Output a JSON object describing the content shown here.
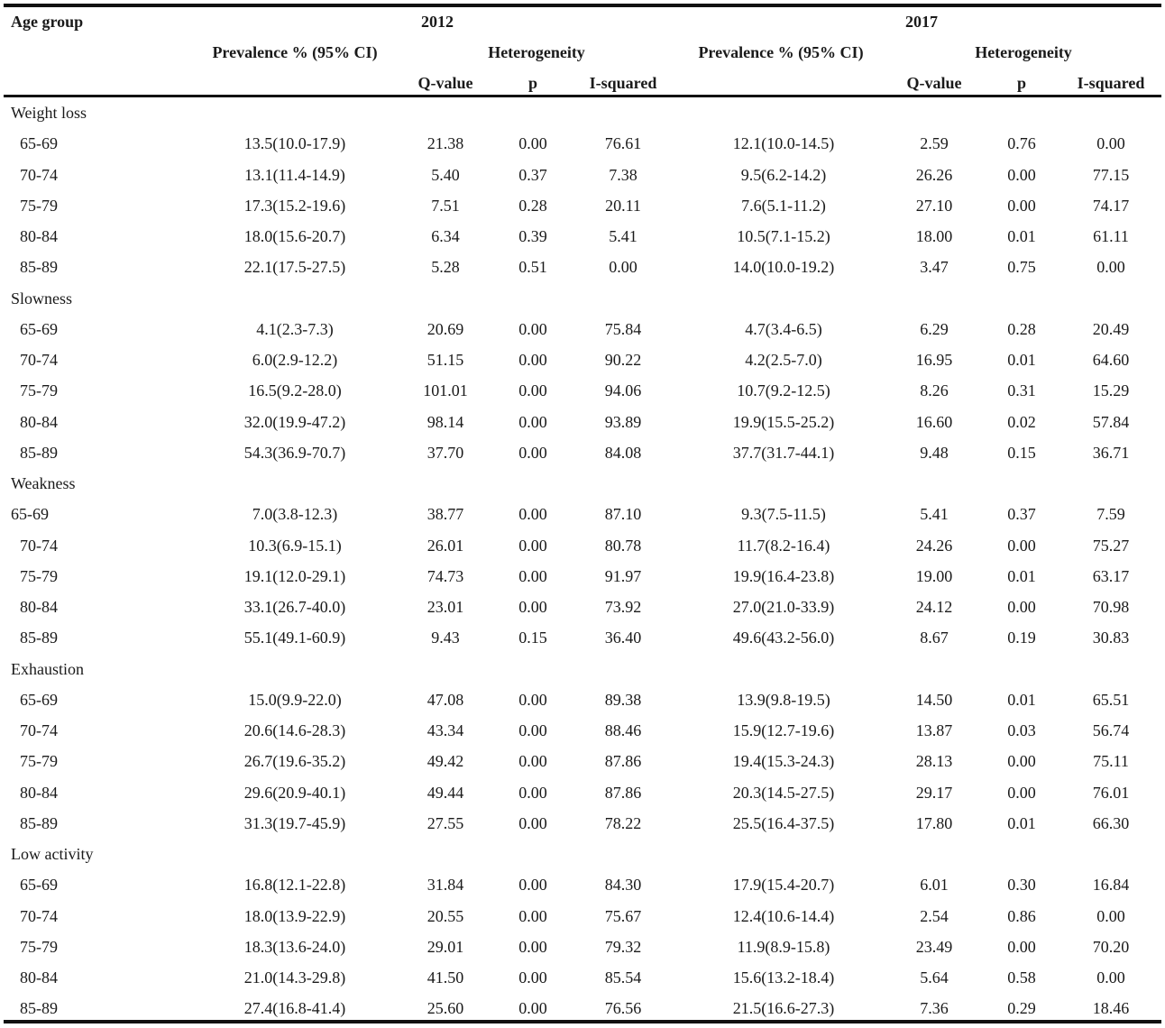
{
  "header": {
    "age_group": "Age group",
    "year_a": "2012",
    "year_b": "2017",
    "prevalence": "Prevalence % (95% CI)",
    "heterogeneity": "Heterogeneity",
    "q_value": "Q-value",
    "p": "p",
    "i_squared": "I-squared"
  },
  "sections": [
    {
      "label": "Weight loss",
      "rows": [
        {
          "age": "65-69",
          "prev2012": "13.5(10.0-17.9)",
          "q2012": "21.38",
          "p2012": "0.00",
          "i2012": "76.61",
          "prev2017": "12.1(10.0-14.5)",
          "q2017": "2.59",
          "p2017": "0.76",
          "i2017": "0.00"
        },
        {
          "age": "70-74",
          "prev2012": "13.1(11.4-14.9)",
          "q2012": "5.40",
          "p2012": "0.37",
          "i2012": "7.38",
          "prev2017": "9.5(6.2-14.2)",
          "q2017": "26.26",
          "p2017": "0.00",
          "i2017": "77.15"
        },
        {
          "age": "75-79",
          "prev2012": "17.3(15.2-19.6)",
          "q2012": "7.51",
          "p2012": "0.28",
          "i2012": "20.11",
          "prev2017": "7.6(5.1-11.2)",
          "q2017": "27.10",
          "p2017": "0.00",
          "i2017": "74.17"
        },
        {
          "age": "80-84",
          "prev2012": "18.0(15.6-20.7)",
          "q2012": "6.34",
          "p2012": "0.39",
          "i2012": "5.41",
          "prev2017": "10.5(7.1-15.2)",
          "q2017": "18.00",
          "p2017": "0.01",
          "i2017": "61.11"
        },
        {
          "age": "85-89",
          "prev2012": "22.1(17.5-27.5)",
          "q2012": "5.28",
          "p2012": "0.51",
          "i2012": "0.00",
          "prev2017": "14.0(10.0-19.2)",
          "q2017": "3.47",
          "p2017": "0.75",
          "i2017": "0.00"
        }
      ]
    },
    {
      "label": "Slowness",
      "rows": [
        {
          "age": "65-69",
          "prev2012": "4.1(2.3-7.3)",
          "q2012": "20.69",
          "p2012": "0.00",
          "i2012": "75.84",
          "prev2017": "4.7(3.4-6.5)",
          "q2017": "6.29",
          "p2017": "0.28",
          "i2017": "20.49"
        },
        {
          "age": "70-74",
          "prev2012": "6.0(2.9-12.2)",
          "q2012": "51.15",
          "p2012": "0.00",
          "i2012": "90.22",
          "prev2017": "4.2(2.5-7.0)",
          "q2017": "16.95",
          "p2017": "0.01",
          "i2017": "64.60"
        },
        {
          "age": "75-79",
          "prev2012": "16.5(9.2-28.0)",
          "q2012": "101.01",
          "p2012": "0.00",
          "i2012": "94.06",
          "prev2017": "10.7(9.2-12.5)",
          "q2017": "8.26",
          "p2017": "0.31",
          "i2017": "15.29"
        },
        {
          "age": "80-84",
          "prev2012": "32.0(19.9-47.2)",
          "q2012": "98.14",
          "p2012": "0.00",
          "i2012": "93.89",
          "prev2017": "19.9(15.5-25.2)",
          "q2017": "16.60",
          "p2017": "0.02",
          "i2017": "57.84"
        },
        {
          "age": "85-89",
          "prev2012": "54.3(36.9-70.7)",
          "q2012": "37.70",
          "p2012": "0.00",
          "i2012": "84.08",
          "prev2017": "37.7(31.7-44.1)",
          "q2017": "9.48",
          "p2017": "0.15",
          "i2017": "36.71"
        }
      ]
    },
    {
      "label": "Weakness",
      "rows": [
        {
          "age": "65-69",
          "noindent": true,
          "prev2012": "7.0(3.8-12.3)",
          "q2012": "38.77",
          "p2012": "0.00",
          "i2012": "87.10",
          "prev2017": "9.3(7.5-11.5)",
          "q2017": "5.41",
          "p2017": "0.37",
          "i2017": "7.59"
        },
        {
          "age": "70-74",
          "prev2012": "10.3(6.9-15.1)",
          "q2012": "26.01",
          "p2012": "0.00",
          "i2012": "80.78",
          "prev2017": "11.7(8.2-16.4)",
          "q2017": "24.26",
          "p2017": "0.00",
          "i2017": "75.27"
        },
        {
          "age": "75-79",
          "prev2012": "19.1(12.0-29.1)",
          "q2012": "74.73",
          "p2012": "0.00",
          "i2012": "91.97",
          "prev2017": "19.9(16.4-23.8)",
          "q2017": "19.00",
          "p2017": "0.01",
          "i2017": "63.17"
        },
        {
          "age": "80-84",
          "prev2012": "33.1(26.7-40.0)",
          "q2012": "23.01",
          "p2012": "0.00",
          "i2012": "73.92",
          "prev2017": "27.0(21.0-33.9)",
          "q2017": "24.12",
          "p2017": "0.00",
          "i2017": "70.98"
        },
        {
          "age": "85-89",
          "prev2012": "55.1(49.1-60.9)",
          "q2012": "9.43",
          "p2012": "0.15",
          "i2012": "36.40",
          "prev2017": "49.6(43.2-56.0)",
          "q2017": "8.67",
          "p2017": "0.19",
          "i2017": "30.83"
        }
      ]
    },
    {
      "label": "Exhaustion",
      "rows": [
        {
          "age": "65-69",
          "prev2012": "15.0(9.9-22.0)",
          "q2012": "47.08",
          "p2012": "0.00",
          "i2012": "89.38",
          "prev2017": "13.9(9.8-19.5)",
          "q2017": "14.50",
          "p2017": "0.01",
          "i2017": "65.51"
        },
        {
          "age": "70-74",
          "prev2012": "20.6(14.6-28.3)",
          "q2012": "43.34",
          "p2012": "0.00",
          "i2012": "88.46",
          "prev2017": "15.9(12.7-19.6)",
          "q2017": "13.87",
          "p2017": "0.03",
          "i2017": "56.74"
        },
        {
          "age": "75-79",
          "prev2012": "26.7(19.6-35.2)",
          "q2012": "49.42",
          "p2012": "0.00",
          "i2012": "87.86",
          "prev2017": "19.4(15.3-24.3)",
          "q2017": "28.13",
          "p2017": "0.00",
          "i2017": "75.11"
        },
        {
          "age": "80-84",
          "prev2012": "29.6(20.9-40.1)",
          "q2012": "49.44",
          "p2012": "0.00",
          "i2012": "87.86",
          "prev2017": "20.3(14.5-27.5)",
          "q2017": "29.17",
          "p2017": "0.00",
          "i2017": "76.01"
        },
        {
          "age": "85-89",
          "prev2012": "31.3(19.7-45.9)",
          "q2012": "27.55",
          "p2012": "0.00",
          "i2012": "78.22",
          "prev2017": "25.5(16.4-37.5)",
          "q2017": "17.80",
          "p2017": "0.01",
          "i2017": "66.30"
        }
      ]
    },
    {
      "label": "Low activity",
      "rows": [
        {
          "age": "65-69",
          "prev2012": "16.8(12.1-22.8)",
          "q2012": "31.84",
          "p2012": "0.00",
          "i2012": "84.30",
          "prev2017": "17.9(15.4-20.7)",
          "q2017": "6.01",
          "p2017": "0.30",
          "i2017": "16.84"
        },
        {
          "age": "70-74",
          "prev2012": "18.0(13.9-22.9)",
          "q2012": "20.55",
          "p2012": "0.00",
          "i2012": "75.67",
          "prev2017": "12.4(10.6-14.4)",
          "q2017": "2.54",
          "p2017": "0.86",
          "i2017": "0.00"
        },
        {
          "age": "75-79",
          "prev2012": "18.3(13.6-24.0)",
          "q2012": "29.01",
          "p2012": "0.00",
          "i2012": "79.32",
          "prev2017": "11.9(8.9-15.8)",
          "q2017": "23.49",
          "p2017": "0.00",
          "i2017": "70.20"
        },
        {
          "age": "80-84",
          "prev2012": "21.0(14.3-29.8)",
          "q2012": "41.50",
          "p2012": "0.00",
          "i2012": "85.54",
          "prev2017": "15.6(13.2-18.4)",
          "q2017": "5.64",
          "p2017": "0.58",
          "i2017": "0.00"
        },
        {
          "age": "85-89",
          "prev2012": "27.4(16.8-41.4)",
          "q2012": "25.60",
          "p2012": "0.00",
          "i2012": "76.56",
          "prev2017": "21.5(16.6-27.3)",
          "q2017": "7.36",
          "p2017": "0.29",
          "i2017": "18.46"
        }
      ]
    }
  ]
}
